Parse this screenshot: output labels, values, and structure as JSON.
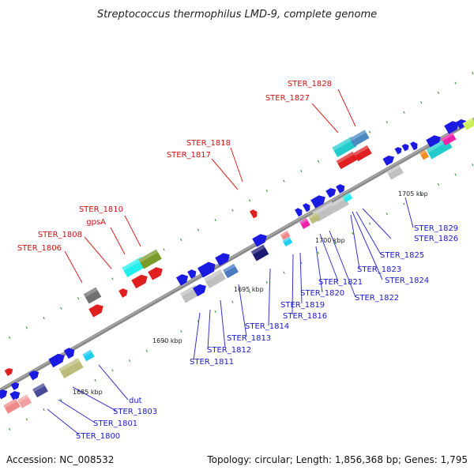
{
  "title": "Streptococcus thermophilus LMD-9, complete genome",
  "accession": "Accession: NC_008532",
  "topology": "Topology: circular; Length: 1,856,368 bp; Genes: 1,795",
  "colors": {
    "backbone": "#8a8a8a",
    "tick": "#2a8a2a",
    "red_label": "#cc1111",
    "blue_label": "#1a1acc",
    "leader": "#3333cc",
    "leader_red": "#dd2222"
  },
  "scale_labels": [
    {
      "text": "1685 kbp"
    },
    {
      "text": "1690 kbp"
    },
    {
      "text": "1695 kbp"
    },
    {
      "text": "1700 kbp"
    },
    {
      "text": "1705 kbp"
    }
  ],
  "labels_top": [
    "STER_1828",
    "STER_1827",
    "STER_1818",
    "STER_1817",
    "STER_1810",
    "gpsA",
    "STER_1808",
    "STER_1806"
  ],
  "labels_bottom": [
    "STER_1829",
    "STER_1826",
    "STER_1825",
    "STER_1823",
    "STER_1824",
    "STER_1822",
    "STER_1821",
    "STER_1820",
    "STER_1819",
    "STER_1816",
    "STER_1814",
    "STER_1813",
    "STER_1812",
    "STER_1811",
    "dut",
    "STER_1803",
    "STER_1801",
    "STER_1800"
  ]
}
